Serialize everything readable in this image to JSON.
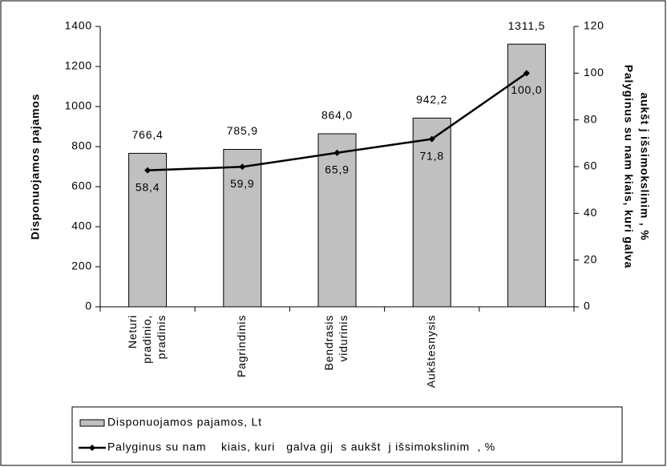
{
  "chart_data": {
    "type": "bar_line",
    "categories": [
      [
        "Neturi",
        "pradinio,",
        "pradinis"
      ],
      [
        "Pagrindinis"
      ],
      [
        "Bendrasis",
        "vidurinis"
      ],
      [
        "Aukštesnysis"
      ],
      null
    ],
    "ylabel": "Disponuojamos pajamos",
    "y2label": [
      "Palyginus su nam    kiais, kuri  galva",
      "aukšt  j išsimokslinim  , %"
    ],
    "ylim": [
      0,
      1400
    ],
    "yticks": [
      0,
      200,
      400,
      600,
      800,
      1000,
      1200,
      1400
    ],
    "y2lim": [
      0,
      120
    ],
    "y2ticks": [
      0,
      20,
      40,
      60,
      80,
      100,
      120
    ],
    "series": [
      {
        "name": "Disponuojamos pajamos, Lt",
        "type": "bar",
        "color": "#c0c0c0",
        "values": [
          766.4,
          785.9,
          864.0,
          942.2,
          1311.5
        ],
        "value_labels": [
          "766,4",
          "785,9",
          "864,0",
          "942,2",
          "1311,5"
        ]
      },
      {
        "name": "Palyginus su nam    kiais, kuri   galva gij  s aukšt  j išsimokslinim  , %",
        "type": "line",
        "axis": "y2",
        "color": "#000000",
        "values": [
          58.4,
          59.9,
          65.9,
          71.8,
          100.0
        ],
        "value_labels": [
          "58,4",
          "59,9",
          "65,9",
          "71,8",
          "100,0"
        ]
      }
    ]
  }
}
